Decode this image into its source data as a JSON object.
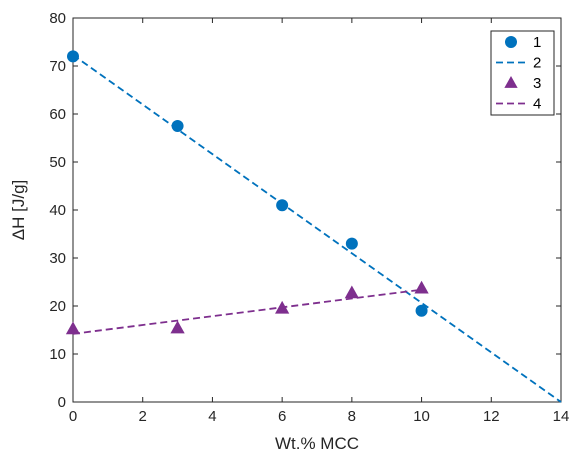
{
  "chart_data": {
    "type": "scatter",
    "title": "",
    "xlabel": "Wt.% MCC",
    "ylabel": "ΔH [J/g]",
    "xlim": [
      0,
      14
    ],
    "ylim": [
      0,
      80
    ],
    "xticks": [
      0,
      2,
      4,
      6,
      8,
      10,
      12,
      14
    ],
    "yticks": [
      0,
      10,
      20,
      30,
      40,
      50,
      60,
      70,
      80
    ],
    "grid": false,
    "legend_position": "top-right",
    "series": [
      {
        "name": "1",
        "kind": "scatter",
        "marker": "circle",
        "color": "#0072BD",
        "x": [
          0,
          3,
          6,
          8,
          10
        ],
        "y": [
          72,
          57.5,
          41,
          33,
          19
        ]
      },
      {
        "name": "2",
        "kind": "dashed-line",
        "color": "#0072BD",
        "x": [
          0,
          14
        ],
        "y": [
          72.3,
          0
        ]
      },
      {
        "name": "3",
        "kind": "scatter",
        "marker": "triangle",
        "color": "#7E2F8E",
        "x": [
          0,
          3,
          6,
          8,
          10
        ],
        "y": [
          15.2,
          15.4,
          19.5,
          22.7,
          23.7
        ]
      },
      {
        "name": "4",
        "kind": "dashed-line",
        "color": "#7E2F8E",
        "x": [
          0,
          10
        ],
        "y": [
          14.2,
          23.4
        ]
      }
    ]
  }
}
